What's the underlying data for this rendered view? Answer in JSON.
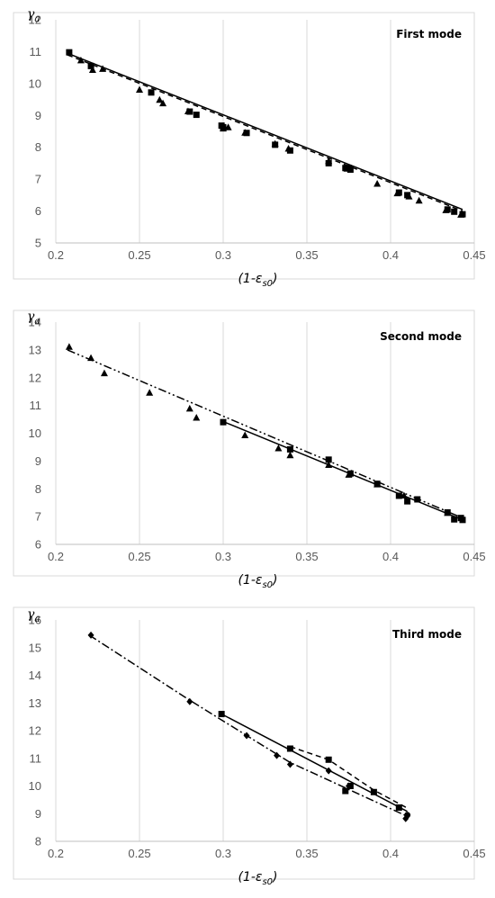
{
  "chart_data": [
    {
      "type": "line",
      "title": "First mode",
      "ylabel": "γa",
      "xlabel": "(1-εs0)",
      "xlim": [
        0.2,
        0.45
      ],
      "ylim": [
        5,
        12
      ],
      "xticks": [
        "0.2",
        "0.25",
        "0.3",
        "0.35",
        "0.4",
        "0.45"
      ],
      "yticks": [
        "5",
        "6",
        "7",
        "8",
        "9",
        "10",
        "11",
        "12"
      ],
      "grid": "vertical",
      "legend": "none",
      "series": [
        {
          "marker": "triangle",
          "line": "none",
          "x": [
            0.215,
            0.222,
            0.228,
            0.25,
            0.262,
            0.264,
            0.279,
            0.3,
            0.303,
            0.313,
            0.331,
            0.339,
            0.363,
            0.374,
            0.392,
            0.404,
            0.411,
            0.417,
            0.433,
            0.442
          ],
          "y": [
            10.72,
            10.42,
            10.45,
            9.8,
            9.48,
            9.37,
            9.12,
            8.58,
            8.62,
            8.45,
            8.1,
            7.95,
            7.56,
            7.32,
            6.85,
            6.55,
            6.45,
            6.32,
            6.02,
            5.88
          ]
        },
        {
          "marker": "square",
          "line": "none",
          "x": [
            0.208,
            0.221,
            0.257,
            0.28,
            0.284,
            0.299,
            0.3,
            0.314,
            0.331,
            0.34,
            0.363,
            0.373,
            0.375,
            0.376,
            0.405,
            0.41,
            0.434,
            0.438,
            0.443
          ],
          "y": [
            10.98,
            10.55,
            9.72,
            9.12,
            9.02,
            8.68,
            8.63,
            8.45,
            8.08,
            7.9,
            7.5,
            7.35,
            7.35,
            7.3,
            6.58,
            6.5,
            6.05,
            5.98,
            5.9
          ]
        },
        {
          "marker": "none",
          "line": "solid",
          "x": [
            0.207,
            0.443
          ],
          "y": [
            10.95,
            6.05
          ]
        },
        {
          "marker": "none",
          "line": "dash",
          "x": [
            0.207,
            0.443
          ],
          "y": [
            10.9,
            6.0
          ]
        }
      ]
    },
    {
      "type": "line",
      "title": "Second mode",
      "ylabel": "γa",
      "xlabel": "(1-εs0)",
      "xlim": [
        0.2,
        0.45
      ],
      "ylim": [
        6,
        14
      ],
      "xticks": [
        "0.2",
        "0.25",
        "0.3",
        "0.35",
        "0.4",
        "0.45"
      ],
      "yticks": [
        "6",
        "7",
        "8",
        "9",
        "10",
        "11",
        "12",
        "13",
        "14"
      ],
      "grid": "vertical",
      "legend": "none",
      "series": [
        {
          "marker": "triangle",
          "line": "none",
          "x": [
            0.208,
            0.221,
            0.229,
            0.256,
            0.28,
            0.284,
            0.313,
            0.333,
            0.34,
            0.363,
            0.375,
            0.392,
            0.408,
            0.434
          ],
          "y": [
            13.1,
            12.7,
            12.15,
            11.45,
            10.88,
            10.55,
            9.92,
            9.45,
            9.2,
            8.85,
            8.5,
            8.15,
            7.75,
            7.12
          ]
        },
        {
          "marker": "square",
          "line": "none",
          "x": [
            0.3,
            0.34,
            0.363,
            0.376,
            0.392,
            0.405,
            0.41,
            0.416,
            0.434,
            0.438,
            0.442,
            0.443
          ],
          "y": [
            10.4,
            9.42,
            9.05,
            8.55,
            8.18,
            7.75,
            7.55,
            7.62,
            7.15,
            6.9,
            6.95,
            6.88
          ]
        },
        {
          "marker": "none",
          "line": "solid",
          "x": [
            0.3,
            0.443
          ],
          "y": [
            10.42,
            6.88
          ]
        },
        {
          "marker": "none",
          "line": "dash-dot-dot",
          "x": [
            0.207,
            0.443
          ],
          "y": [
            13.0,
            6.95
          ]
        }
      ]
    },
    {
      "type": "line",
      "title": "Third mode",
      "ylabel": "γa",
      "xlabel": "(1-εs0)",
      "xlim": [
        0.2,
        0.45
      ],
      "ylim": [
        8,
        16
      ],
      "xticks": [
        "0.2",
        "0.25",
        "0.3",
        "0.35",
        "0.4",
        "0.45"
      ],
      "yticks": [
        "8",
        "9",
        "10",
        "11",
        "12",
        "13",
        "14",
        "15",
        "16"
      ],
      "grid": "vertical",
      "legend": "none",
      "series": [
        {
          "marker": "diamond",
          "line": "none",
          "x": [
            0.221,
            0.28,
            0.314,
            0.332,
            0.34,
            0.363,
            0.375,
            0.409
          ],
          "y": [
            15.45,
            13.05,
            11.82,
            11.1,
            10.78,
            10.55,
            10.0,
            8.82
          ]
        },
        {
          "marker": "square",
          "line": "none",
          "x": [
            0.299,
            0.34,
            0.363,
            0.373,
            0.376,
            0.39,
            0.405
          ],
          "y": [
            12.6,
            11.35,
            10.95,
            9.82,
            10.0,
            9.78,
            9.22
          ]
        },
        {
          "marker": "circle",
          "line": "none",
          "x": [
            0.41
          ],
          "y": [
            8.95
          ]
        },
        {
          "marker": "none",
          "line": "solid",
          "x": [
            0.299,
            0.41
          ],
          "y": [
            12.6,
            9.08
          ]
        },
        {
          "marker": "none",
          "line": "dash",
          "x": [
            0.34,
            0.363,
            0.39,
            0.41
          ],
          "y": [
            11.42,
            10.95,
            9.85,
            9.2
          ]
        },
        {
          "marker": "none",
          "line": "dash-dot",
          "x": [
            0.22,
            0.28,
            0.34,
            0.41
          ],
          "y": [
            15.45,
            13.1,
            10.85,
            8.9
          ]
        }
      ]
    }
  ]
}
